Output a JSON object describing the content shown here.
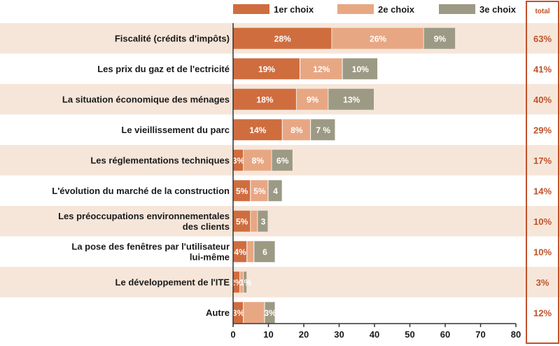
{
  "chart_data": {
    "type": "bar",
    "orientation": "horizontal",
    "stacked": true,
    "legend_position": "top",
    "categories": [
      [
        "Fiscalité (crédits d'impôts)"
      ],
      [
        "Les prix du gaz et de l'ectricité"
      ],
      [
        "La situation économique des ménages"
      ],
      [
        "Le vieillissement du parc"
      ],
      [
        "Les réglementations techniques"
      ],
      [
        "L'évolution du marché de la construction"
      ],
      [
        "Les préoccupations environnementales",
        "des clients"
      ],
      [
        "La pose des fenêtres par l'utilisateur",
        "lui-même"
      ],
      [
        "Le développement de l'ITE"
      ],
      [
        "Autre"
      ]
    ],
    "series": [
      {
        "name": "1er choix",
        "color": "#cf6d3f",
        "values": [
          28,
          19,
          18,
          14,
          3,
          5,
          5,
          4,
          2,
          3
        ],
        "labels": [
          "28%",
          "19%",
          "18%",
          "14%",
          "3%",
          "5%",
          "5%",
          "4%",
          "2%",
          "3%"
        ]
      },
      {
        "name": "2e choix",
        "color": "#e8a783",
        "values": [
          26,
          12,
          9,
          8,
          8,
          5,
          2,
          2,
          1,
          6
        ],
        "labels": [
          "26%",
          "12%",
          "9%",
          "8%",
          "8%",
          "5%",
          "",
          "",
          "",
          ""
        ]
      },
      {
        "name": "3e choix",
        "color": "#9c9a84",
        "values": [
          9,
          10,
          13,
          7,
          6,
          4,
          3,
          6,
          1,
          3
        ],
        "labels": [
          "9%",
          "10%",
          "13%",
          "7 %",
          "6%",
          "4",
          "3",
          "6",
          "1%",
          "3%"
        ]
      }
    ],
    "totals_header": "total",
    "totals": [
      "63%",
      "41%",
      "40%",
      "29%",
      "17%",
      "14%",
      "10%",
      "10%",
      "3%",
      "12%"
    ],
    "x_ticks": [
      "0",
      "10",
      "20",
      "30",
      "40",
      "50",
      "60",
      "70",
      "80"
    ],
    "xlim": [
      0,
      80
    ],
    "grid": false,
    "colors": {
      "band": "#f6e6da",
      "total_border": "#c0522a",
      "total_text": "#c0522a"
    }
  }
}
